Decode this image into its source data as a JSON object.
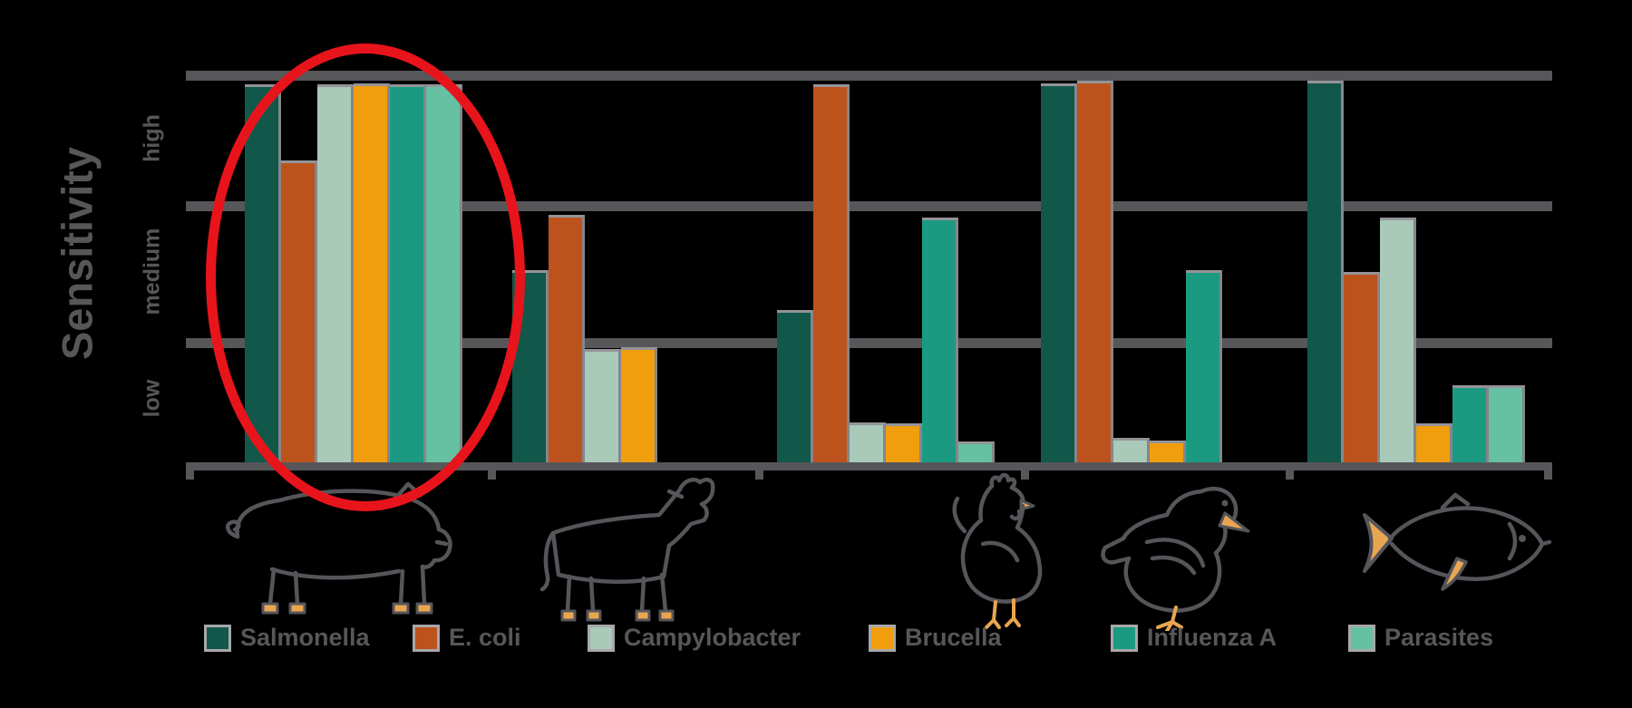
{
  "y_axis": {
    "title": "Sensitivity",
    "band_labels": [
      "high",
      "medium",
      "low"
    ]
  },
  "colors": {
    "grid": "#57575A",
    "text": "#57575A",
    "highlight_ellipse": "#E8141C",
    "icon_line": "#55555A",
    "icon_accent": "#E9A651",
    "background": "#000000"
  },
  "annotation": {
    "type": "ellipse-highlight",
    "target_category": "Pig"
  },
  "chart_data": {
    "type": "bar",
    "title": "",
    "xlabel": "",
    "ylabel": "Sensitivity",
    "y_bands": [
      "low",
      "medium",
      "high"
    ],
    "ylim": [
      0,
      3
    ],
    "grid": "horizontal",
    "legend_position": "bottom",
    "categories": [
      "Pig",
      "Cow",
      "Chicken",
      "Duck",
      "Fish"
    ],
    "category_icons": [
      "pig-icon",
      "cow-icon",
      "chicken-icon",
      "duck-icon",
      "fish-icon"
    ],
    "series": [
      {
        "name": "Salmonella",
        "color": "#12584A",
        "values_0_3": [
          2.9,
          1.47,
          1.17,
          2.9,
          2.92
        ],
        "values_frac": [
          0.965,
          0.49,
          0.389,
          0.967,
          0.974
        ]
      },
      {
        "name": "E. coli",
        "color": "#BC531D",
        "values_0_3": [
          2.31,
          1.9,
          2.9,
          2.92,
          1.46
        ],
        "values_frac": [
          0.77,
          0.632,
          0.965,
          0.974,
          0.486
        ]
      },
      {
        "name": "Campylobacter",
        "color": "#A9C9B9",
        "values_0_3": [
          2.9,
          0.87,
          0.31,
          0.19,
          1.88
        ],
        "values_frac": [
          0.965,
          0.29,
          0.102,
          0.063,
          0.625
        ]
      },
      {
        "name": "Brucella",
        "color": "#F09D0E",
        "values_0_3": [
          2.9,
          0.88,
          0.3,
          0.17,
          0.3
        ],
        "values_frac": [
          0.967,
          0.293,
          0.1,
          0.056,
          0.1
        ]
      },
      {
        "name": "Influenza A",
        "color": "#1B9A81",
        "values_0_3": [
          2.9,
          0.0,
          1.88,
          1.47,
          0.59
        ],
        "values_frac": [
          0.965,
          0.0,
          0.625,
          0.49,
          0.197
        ]
      },
      {
        "name": "Parasites",
        "color": "#65C1A1",
        "values_0_3": [
          2.9,
          0.0,
          0.16,
          0.0,
          0.59
        ],
        "values_frac": [
          0.965,
          0.0,
          0.053,
          0.0,
          0.197
        ]
      }
    ]
  },
  "legend": {
    "items": [
      {
        "label": "Salmonella",
        "color": "#12584A"
      },
      {
        "label": "E. coli",
        "color": "#BC531D"
      },
      {
        "label": "Campylobacter",
        "color": "#A9C9B9"
      },
      {
        "label": "Brucella",
        "color": "#F09D0E"
      },
      {
        "label": "Influenza A",
        "color": "#1B9A81"
      },
      {
        "label": "Parasites",
        "color": "#65C1A1"
      }
    ]
  }
}
